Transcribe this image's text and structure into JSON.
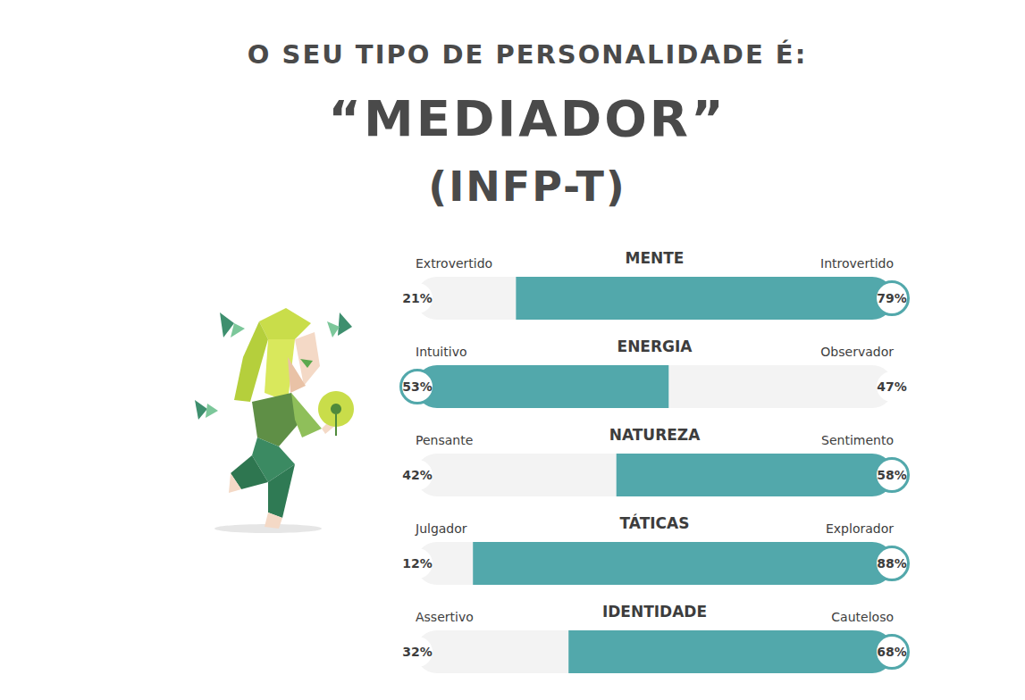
{
  "header": {
    "heading": "O SEU TIPO DE PERSONALIDADE É:",
    "type_name": "“MEDIADOR”",
    "code": "(INFP-T)"
  },
  "chart_data": [
    {
      "type": "bar",
      "orientation": "horizontal",
      "stacked": true,
      "data_labels": true,
      "tick_labels": false,
      "title": "MENTE",
      "categories": [
        null
      ],
      "xlim": [
        0,
        100
      ],
      "series": [
        {
          "name": "Extrovertido",
          "values": [
            21
          ],
          "value_labels": [
            "21%"
          ],
          "color": "#f3f3f3"
        },
        {
          "name": "Introvertido",
          "values": [
            79
          ],
          "value_labels": [
            "79%"
          ],
          "color": "#52a8ab"
        }
      ]
    },
    {
      "type": "bar",
      "orientation": "horizontal",
      "stacked": true,
      "data_labels": true,
      "tick_labels": false,
      "title": "ENERGIA",
      "categories": [
        null
      ],
      "xlim": [
        0,
        100
      ],
      "series": [
        {
          "name": "Intuitivo",
          "values": [
            53
          ],
          "value_labels": [
            "53%"
          ],
          "color": "#52a8ab"
        },
        {
          "name": "Observador",
          "values": [
            47
          ],
          "value_labels": [
            "47%"
          ],
          "color": "#f3f3f3"
        }
      ]
    },
    {
      "type": "bar",
      "orientation": "horizontal",
      "stacked": true,
      "data_labels": true,
      "tick_labels": false,
      "title": "NATUREZA",
      "categories": [
        null
      ],
      "xlim": [
        0,
        100
      ],
      "series": [
        {
          "name": "Pensante",
          "values": [
            42
          ],
          "value_labels": [
            "42%"
          ],
          "color": "#f3f3f3"
        },
        {
          "name": "Sentimento",
          "values": [
            58
          ],
          "value_labels": [
            "58%"
          ],
          "color": "#52a8ab"
        }
      ]
    },
    {
      "type": "bar",
      "orientation": "horizontal",
      "stacked": true,
      "data_labels": true,
      "tick_labels": false,
      "title": "TÁTICAS",
      "categories": [
        null
      ],
      "xlim": [
        0,
        100
      ],
      "series": [
        {
          "name": "Julgador",
          "values": [
            12
          ],
          "value_labels": [
            "12%"
          ],
          "color": "#f3f3f3"
        },
        {
          "name": "Explorador",
          "values": [
            88
          ],
          "value_labels": [
            "88%"
          ],
          "color": "#52a8ab"
        }
      ]
    },
    {
      "type": "bar",
      "orientation": "horizontal",
      "stacked": true,
      "data_labels": true,
      "tick_labels": false,
      "title": "IDENTIDADE",
      "categories": [
        null
      ],
      "xlim": [
        0,
        100
      ],
      "series": [
        {
          "name": "Assertivo",
          "values": [
            32
          ],
          "value_labels": [
            "32%"
          ],
          "color": "#f3f3f3"
        },
        {
          "name": "Cauteloso",
          "values": [
            68
          ],
          "value_labels": [
            "68%"
          ],
          "color": "#52a8ab"
        }
      ]
    }
  ]
}
